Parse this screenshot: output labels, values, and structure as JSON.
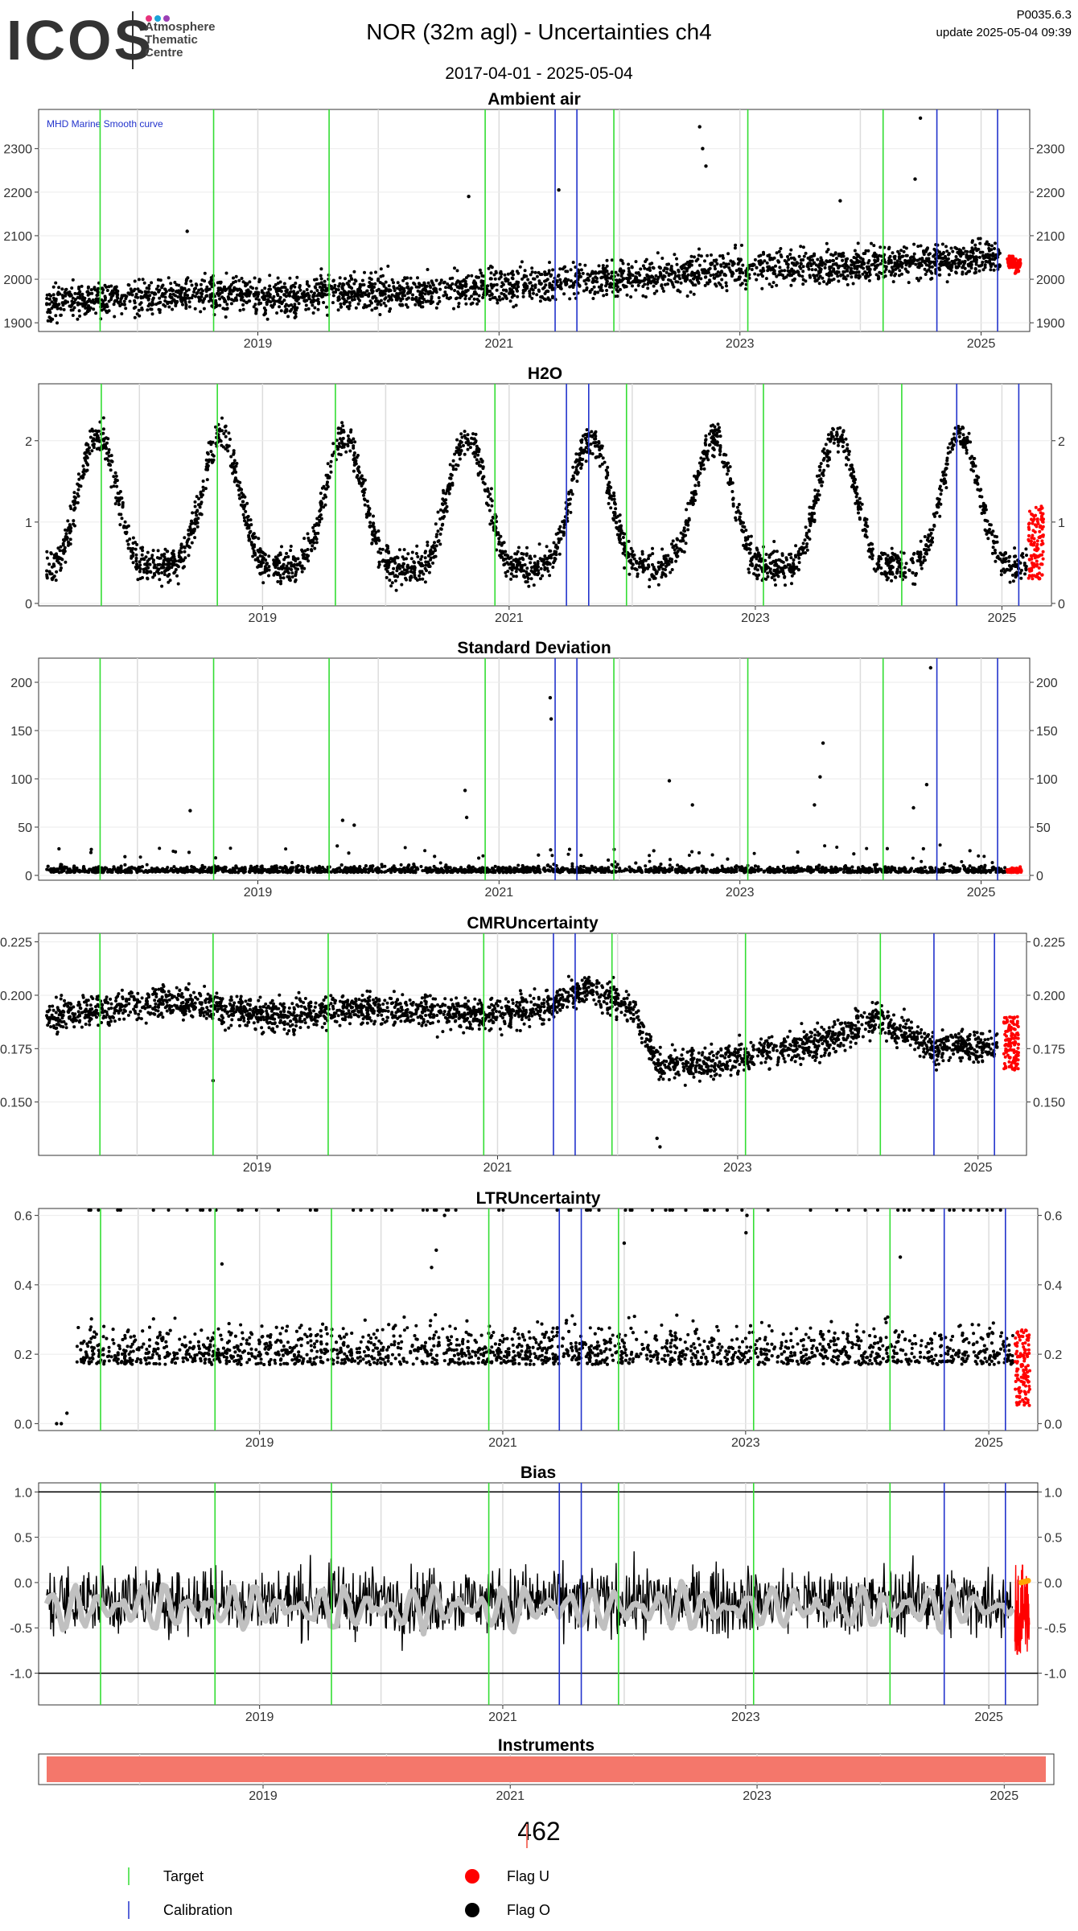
{
  "header": {
    "logo_text": "ICOS",
    "logo_subtitle": [
      "Atmosphere",
      "Thematic",
      "Centre"
    ],
    "logo_dot_colors": [
      "#e8337b",
      "#1ba3d8",
      "#9b3fb5"
    ],
    "title": "NOR  (32m agl) - Uncertainties ch4",
    "version": "P0035.6.3",
    "update": "update  2025-05-04 09:39",
    "date_range": "2017-04-01 - 2025-05-04"
  },
  "colors": {
    "target": "#33dd33",
    "calibration": "#2233cc",
    "flag_u": "#ff0000",
    "flag_o": "#000000",
    "smooth_curve": "#c0c0c0",
    "instrument_bar": "#f4776b",
    "bias_smooth_end": "#ffa500"
  },
  "x_axis": {
    "start": "2017-04-01",
    "end": "2025-05-04",
    "tick_dates": [
      "2019-01-01",
      "2021-01-01",
      "2023-01-01",
      "2025-01-01"
    ],
    "tick_labels": [
      "2019",
      "2021",
      "2023",
      "2025"
    ],
    "minor_grid_dates": [
      "2018-01-01",
      "2020-01-01",
      "2022-01-01",
      "2024-01-01"
    ]
  },
  "events": {
    "target_dates": [
      "2017-09-10",
      "2018-08-20",
      "2019-08-05",
      "2020-11-20",
      "2021-12-15",
      "2023-01-25",
      "2024-03-10"
    ],
    "calibration_dates": [
      "2021-06-20",
      "2021-08-25",
      "2024-08-20",
      "2025-02-20"
    ]
  },
  "chart_data": [
    {
      "type": "scatter",
      "title": "Ambient air",
      "annotation": "MHD Marine Smooth curve",
      "ylim": [
        1880,
        2390
      ],
      "yticks": [
        1900,
        2000,
        2100,
        2200,
        2300
      ],
      "series": [
        {
          "name": "Ambient air",
          "x": [
            "2017-04-01",
            "2017-10-01",
            "2018-04-01",
            "2018-10-01",
            "2019-04-01",
            "2019-10-01",
            "2020-04-01",
            "2020-10-01",
            "2021-04-01",
            "2021-10-01",
            "2022-04-01",
            "2022-10-01",
            "2023-04-01",
            "2023-10-01",
            "2024-04-01",
            "2024-10-01",
            "2025-03-01"
          ],
          "y": [
            1945,
            1955,
            1960,
            1965,
            1958,
            1972,
            1970,
            1978,
            1985,
            2000,
            2005,
            2015,
            2030,
            2028,
            2040,
            2045,
            2050
          ],
          "spread": 38
        },
        {
          "name": "Flag U",
          "x": [
            "2025-03-20",
            "2025-04-05",
            "2025-04-20",
            "2025-05-01"
          ],
          "y": [
            2035,
            2045,
            2025,
            2040
          ],
          "spread": 25
        }
      ],
      "outliers": [
        [
          "2018-06-01",
          2110
        ],
        [
          "2020-10-01",
          2190
        ],
        [
          "2021-07-01",
          2205
        ],
        [
          "2022-09-01",
          2350
        ],
        [
          "2022-09-10",
          2300
        ],
        [
          "2022-09-20",
          2260
        ],
        [
          "2023-11-01",
          2180
        ],
        [
          "2024-07-01",
          2370
        ],
        [
          "2024-06-15",
          2230
        ]
      ]
    },
    {
      "type": "scatter",
      "title": "H2O",
      "ylim": [
        -0.03,
        2.7
      ],
      "yticks": [
        0,
        1,
        2
      ],
      "seasonal": {
        "base": 0.45,
        "amplitude": 1.6,
        "peak_month": 8
      },
      "series": [
        {
          "name": "H2O",
          "x": [
            "2017-04-01",
            "2025-03-15"
          ],
          "spread": 0.22
        },
        {
          "name": "Flag U",
          "x": [
            "2025-03-20",
            "2025-05-04"
          ],
          "y_range": [
            0.3,
            1.2
          ]
        }
      ]
    },
    {
      "type": "scatter",
      "title": "Standard Deviation",
      "ylim": [
        -5,
        225
      ],
      "yticks": [
        0,
        50,
        100,
        150,
        200
      ],
      "series": [
        {
          "name": "Standard Deviation",
          "x": [
            "2017-04-01",
            "2025-03-15"
          ],
          "base": 3,
          "spread": 6
        },
        {
          "name": "Flag U",
          "x": [
            "2025-03-20",
            "2025-05-04"
          ],
          "base": 3,
          "spread": 8
        }
      ],
      "outliers": [
        [
          "2018-06-10",
          67
        ],
        [
          "2019-09-15",
          57
        ],
        [
          "2019-10-20",
          52
        ],
        [
          "2020-09-20",
          88
        ],
        [
          "2020-09-25",
          60
        ],
        [
          "2021-06-05",
          184
        ],
        [
          "2021-06-08",
          162
        ],
        [
          "2022-06-01",
          98
        ],
        [
          "2022-08-10",
          73
        ],
        [
          "2023-09-10",
          137
        ],
        [
          "2023-09-01",
          102
        ],
        [
          "2023-08-15",
          73
        ],
        [
          "2024-08-01",
          215
        ],
        [
          "2024-07-20",
          94
        ],
        [
          "2024-06-10",
          70
        ]
      ]
    },
    {
      "type": "scatter",
      "title": "CMRUncertainty",
      "ylim": [
        0.125,
        0.229
      ],
      "yticks": [
        0.15,
        0.175,
        0.2,
        0.225
      ],
      "ytick_labels": [
        "0.150",
        "0.175",
        "0.200",
        "0.225"
      ],
      "series": [
        {
          "name": "CMRUncertainty",
          "x": [
            "2017-04-01",
            "2017-10-01",
            "2018-04-01",
            "2018-10-01",
            "2019-04-01",
            "2019-10-01",
            "2020-04-01",
            "2020-10-01",
            "2021-04-01",
            "2021-10-01",
            "2022-02-15",
            "2022-05-01",
            "2022-10-01",
            "2023-04-01",
            "2023-10-01",
            "2024-03-01",
            "2024-08-01",
            "2025-03-01"
          ],
          "y": [
            0.19,
            0.193,
            0.198,
            0.193,
            0.19,
            0.194,
            0.193,
            0.191,
            0.192,
            0.203,
            0.195,
            0.168,
            0.168,
            0.174,
            0.178,
            0.19,
            0.176,
            0.176
          ],
          "spread": 0.007
        },
        {
          "name": "Flag U",
          "x": [
            "2025-03-20",
            "2025-05-04"
          ],
          "y_range": [
            0.165,
            0.19
          ]
        }
      ],
      "outliers": [
        [
          "2018-08-20",
          0.16
        ],
        [
          "2022-05-01",
          0.133
        ],
        [
          "2022-05-10",
          0.129
        ]
      ]
    },
    {
      "type": "scatter",
      "title": "LTRUncertainty",
      "ylim": [
        -0.02,
        0.62
      ],
      "yticks": [
        0.0,
        0.2,
        0.4,
        0.6
      ],
      "ytick_labels": [
        "0.0",
        "0.2",
        "0.4",
        "0.6"
      ],
      "series": [
        {
          "name": "LTRUncertainty",
          "x": [
            "2017-07-01",
            "2025-03-15"
          ],
          "base": 0.17,
          "spread": 0.1
        },
        {
          "name": "Flag U",
          "x": [
            "2025-03-20",
            "2025-05-04"
          ],
          "y_range": [
            0.05,
            0.27
          ]
        }
      ],
      "outliers": [
        [
          "2017-05-01",
          0.0
        ],
        [
          "2017-05-15",
          0.0
        ],
        [
          "2017-06-01",
          0.03
        ],
        [
          "2018-09-10",
          0.46
        ],
        [
          "2020-07-10",
          0.6
        ],
        [
          "2020-06-15",
          0.5
        ],
        [
          "2020-06-01",
          0.45
        ],
        [
          "2023-01-05",
          0.6
        ],
        [
          "2023-01-02",
          0.55
        ],
        [
          "2022-01-01",
          0.52
        ],
        [
          "2024-04-10",
          0.48
        ]
      ]
    },
    {
      "type": "line",
      "title": "Bias",
      "ylim": [
        -1.35,
        1.1
      ],
      "yticks": [
        -1.0,
        -0.5,
        0.0,
        0.5,
        1.0
      ],
      "ytick_labels": [
        "-1.0",
        "-0.5",
        "0.0",
        "0.5",
        "1.0"
      ],
      "hlines": [
        -1.0,
        1.0
      ],
      "series": [
        {
          "name": "Bias",
          "x": [
            "2017-04-01",
            "2025-03-15"
          ],
          "base": -0.2,
          "spread": 0.35
        },
        {
          "name": "Bias smooth",
          "x": [
            "2017-04-01",
            "2025-03-15"
          ],
          "base": -0.28,
          "amplitude": 0.25
        },
        {
          "name": "Flag U",
          "x": [
            "2025-03-20",
            "2025-05-04"
          ],
          "y_range": [
            -0.8,
            0.2
          ]
        }
      ]
    },
    {
      "type": "bar",
      "title": "Instruments",
      "series": [
        {
          "name": "462",
          "x": [
            "2017-04-01",
            "2025-05-04"
          ]
        }
      ]
    }
  ],
  "legend": {
    "instrument_id": "462",
    "target_label": "Target",
    "calibration_label": "Calibration",
    "flag_u_label": "Flag U",
    "flag_o_label": "Flag O"
  }
}
